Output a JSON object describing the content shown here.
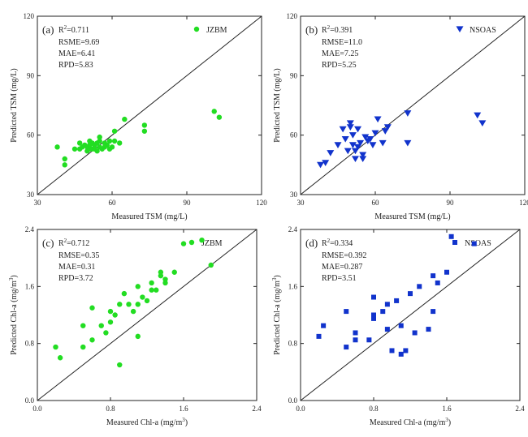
{
  "chart_data": [
    {
      "type": "scatter",
      "panel": "(a)",
      "marker": "circle",
      "color": "#22dd22",
      "xlabel": "Measured TSM (mg/L)",
      "ylabel": "Predicted TSM (mg/L)",
      "xlim": [
        30,
        120
      ],
      "ylim": [
        30,
        120
      ],
      "xticks": [
        "30",
        "60",
        "90",
        "120"
      ],
      "yticks": [
        "30",
        "60",
        "90",
        "120"
      ],
      "legend": "JZBM",
      "stats": [
        "RSME=9.69",
        "MAE=6.41",
        "RPD=5.83"
      ],
      "r2_label": "R",
      "r2_sup": "2",
      "r2_value": "=0.711",
      "reference_line": "1:1",
      "series": [
        {
          "name": "JZBM",
          "x": [
            38,
            41,
            41,
            45,
            47,
            47,
            48,
            49,
            50,
            50,
            51,
            51,
            51,
            52,
            52,
            53,
            53,
            54,
            54,
            55,
            55,
            55,
            56,
            57,
            57,
            58,
            59,
            59,
            60,
            61,
            61,
            63,
            65,
            73,
            73,
            101,
            103
          ],
          "y": [
            54,
            45,
            48,
            53,
            56,
            53,
            54,
            55,
            52,
            54,
            53,
            55,
            57,
            53,
            56,
            53,
            55,
            52,
            56,
            54,
            57,
            59,
            53,
            56,
            54,
            55,
            53,
            57,
            54,
            57,
            62,
            56,
            68,
            62,
            65,
            72,
            69
          ]
        }
      ]
    },
    {
      "type": "scatter",
      "panel": "(b)",
      "marker": "triangle-down",
      "color": "#1133cc",
      "xlabel": "Measured TSM (mg/L)",
      "ylabel": "Predicted TSM (mg/L)",
      "xlim": [
        30,
        120
      ],
      "ylim": [
        30,
        120
      ],
      "xticks": [
        "30",
        "60",
        "90",
        "120"
      ],
      "yticks": [
        "30",
        "60",
        "90",
        "120"
      ],
      "legend": "NSOAS",
      "stats": [
        "RMSE=11.0",
        "MAE=7.25",
        "RPD=5.25"
      ],
      "r2_label": "R",
      "r2_sup": "2",
      "r2_value": "=0.391",
      "reference_line": "1:1",
      "series": [
        {
          "name": "NSOAS",
          "x": [
            38,
            40,
            42,
            45,
            47,
            48,
            49,
            50,
            50,
            51,
            51,
            52,
            52,
            53,
            53,
            54,
            55,
            55,
            56,
            57,
            58,
            59,
            60,
            61,
            63,
            64,
            65,
            73,
            73,
            101,
            103
          ],
          "y": [
            45,
            46,
            51,
            55,
            63,
            58,
            52,
            64,
            66,
            55,
            60,
            52,
            48,
            63,
            54,
            56,
            48,
            50,
            59,
            57,
            58,
            55,
            61,
            68,
            56,
            62,
            64,
            71,
            56,
            70,
            66
          ]
        }
      ]
    },
    {
      "type": "scatter",
      "panel": "(c)",
      "marker": "circle",
      "color": "#22dd22",
      "xlabel": "Measured Chl-a (mg/m",
      "ylabel": "Predicted Chl-a (mg/m",
      "unit_sup": "3",
      "unit_close": ")",
      "xlim": [
        0.0,
        2.4
      ],
      "ylim": [
        0.0,
        2.4
      ],
      "xticks": [
        "0.0",
        "0.8",
        "1.6",
        "2.4"
      ],
      "yticks": [
        "0.0",
        "0.8",
        "1.6",
        "2.4"
      ],
      "legend": "JZBM",
      "stats": [
        "RMSE=0.35",
        "MAE=0.31",
        "RPD=3.72"
      ],
      "r2_label": "R",
      "r2_sup": "2",
      "r2_value": "=0.712",
      "reference_line": "1:1",
      "series": [
        {
          "name": "JZBM",
          "x": [
            0.2,
            0.25,
            0.5,
            0.5,
            0.6,
            0.6,
            0.7,
            0.75,
            0.8,
            0.8,
            0.85,
            0.9,
            0.9,
            0.95,
            1.0,
            1.05,
            1.1,
            1.1,
            1.1,
            1.15,
            1.2,
            1.25,
            1.25,
            1.3,
            1.35,
            1.35,
            1.4,
            1.4,
            1.5,
            1.6,
            1.8,
            1.9
          ],
          "y": [
            0.75,
            0.6,
            0.75,
            1.05,
            1.3,
            0.85,
            1.05,
            0.95,
            1.1,
            1.25,
            1.2,
            1.35,
            0.5,
            1.5,
            1.35,
            1.25,
            0.9,
            1.35,
            1.6,
            1.45,
            1.4,
            1.55,
            1.65,
            1.55,
            1.75,
            1.8,
            1.65,
            1.7,
            1.8,
            2.2,
            2.25,
            1.9
          ]
        }
      ]
    },
    {
      "type": "scatter",
      "panel": "(d)",
      "marker": "square",
      "color": "#1133cc",
      "xlabel": "Measured Chl-a (mg/m",
      "ylabel": "Predicted Chl-a (mg/m",
      "unit_sup": "3",
      "unit_close": ")",
      "xlim": [
        0.0,
        2.4
      ],
      "ylim": [
        0.0,
        2.4
      ],
      "xticks": [
        "0.0",
        "0.8",
        "1.6",
        "2.4"
      ],
      "yticks": [
        "0.0",
        "0.8",
        "1.6",
        "2.4"
      ],
      "legend": "NSOAS",
      "stats": [
        "RMSE=0.392",
        "MAE=0.287",
        "RPD=3.51"
      ],
      "r2_label": "R",
      "r2_sup": "2",
      "r2_value": "=0.334",
      "reference_line": "1:1",
      "series": [
        {
          "name": "NSOAS",
          "x": [
            0.2,
            0.25,
            0.5,
            0.5,
            0.6,
            0.6,
            0.75,
            0.8,
            0.8,
            0.8,
            0.9,
            0.95,
            0.95,
            1.0,
            1.05,
            1.1,
            1.1,
            1.15,
            1.2,
            1.25,
            1.3,
            1.4,
            1.45,
            1.45,
            1.5,
            1.6,
            1.65,
            1.9
          ],
          "y": [
            0.9,
            1.05,
            1.25,
            0.75,
            0.85,
            0.95,
            0.85,
            1.15,
            1.45,
            1.2,
            1.25,
            1.0,
            1.35,
            0.7,
            1.4,
            0.65,
            1.05,
            0.7,
            1.5,
            0.95,
            1.6,
            1.0,
            1.25,
            1.75,
            1.65,
            1.8,
            2.3,
            2.2
          ]
        }
      ]
    }
  ]
}
